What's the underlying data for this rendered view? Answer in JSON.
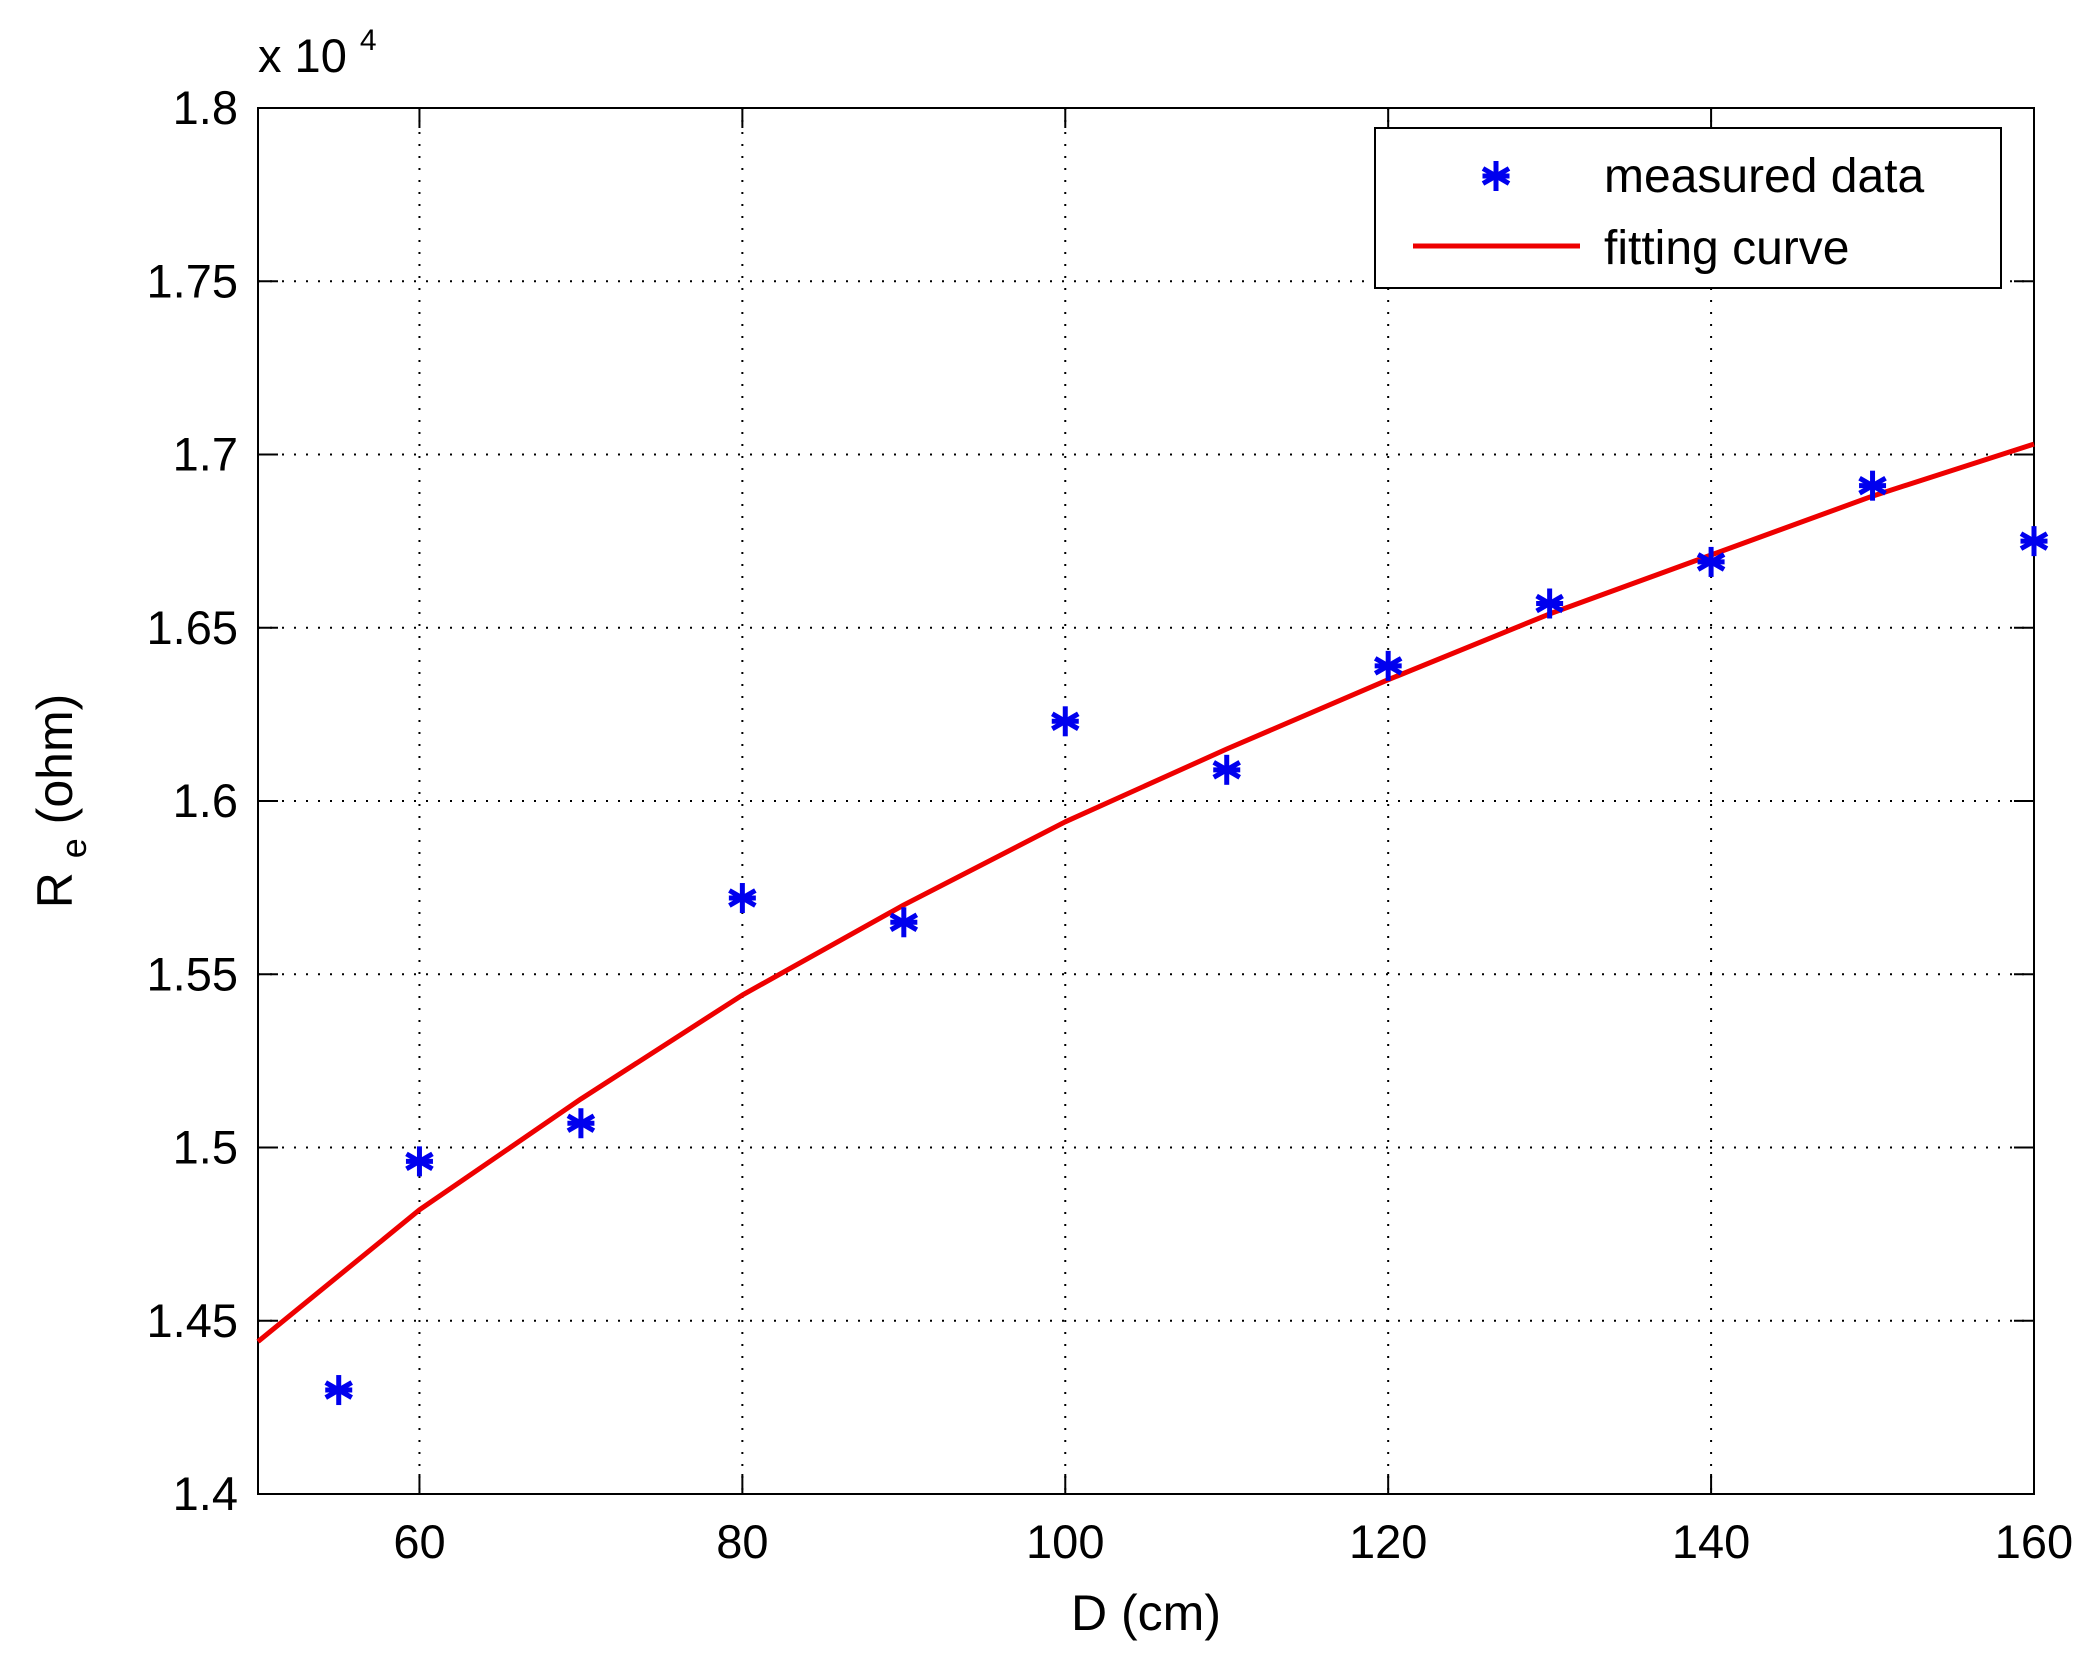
{
  "chart_data": {
    "type": "line",
    "title": "",
    "xlabel": "D (cm)",
    "ylabel_main": "R",
    "ylabel_sub": "e",
    "ylabel_rest": " (ohm)",
    "y_multiplier": {
      "base": "x 10",
      "exponent": "4"
    },
    "xlim": [
      50,
      160
    ],
    "ylim": [
      1.4,
      1.8
    ],
    "x_ticks": [
      60,
      80,
      100,
      120,
      140,
      160
    ],
    "y_ticks": [
      1.4,
      1.45,
      1.5,
      1.55,
      1.6,
      1.65,
      1.7,
      1.75,
      1.8
    ],
    "x_tick_labels": [
      "60",
      "80",
      "100",
      "120",
      "140",
      "160"
    ],
    "y_tick_labels": [
      "1.4",
      "1.45",
      "1.5",
      "1.55",
      "1.6",
      "1.65",
      "1.7",
      "1.75",
      "1.8"
    ],
    "grid": true,
    "legend_position": "top-right",
    "series": [
      {
        "name": "measured data",
        "kind": "scatter",
        "marker": "asterisk",
        "color": "#0000ee",
        "x": [
          55,
          60,
          70,
          80,
          90,
          100,
          110,
          120,
          130,
          140,
          150,
          160
        ],
        "y": [
          1.43,
          1.496,
          1.507,
          1.572,
          1.565,
          1.623,
          1.609,
          1.639,
          1.657,
          1.669,
          1.691,
          1.675
        ]
      },
      {
        "name": "fitting curve",
        "kind": "line",
        "color": "#ee0000",
        "x": [
          50,
          60,
          70,
          80,
          90,
          100,
          110,
          120,
          130,
          140,
          150,
          160
        ],
        "y": [
          1.444,
          1.482,
          1.514,
          1.544,
          1.57,
          1.594,
          1.615,
          1.635,
          1.654,
          1.671,
          1.688,
          1.703
        ]
      }
    ]
  }
}
